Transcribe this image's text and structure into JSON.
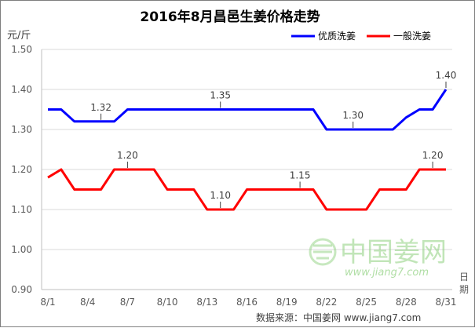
{
  "chart_data": {
    "type": "line",
    "title": "2016年8月昌邑生姜价格走势",
    "ylabel": "元/斤",
    "xlabel": "日期",
    "ylim": [
      0.9,
      1.5
    ],
    "y_ticks": [
      "0.90",
      "1.00",
      "1.10",
      "1.20",
      "1.30",
      "1.40",
      "1.50"
    ],
    "x_tick_labels": [
      "8/1",
      "8/4",
      "8/7",
      "8/10",
      "8/13",
      "8/16",
      "8/19",
      "8/22",
      "8/25",
      "8/28",
      "8/31"
    ],
    "x": [
      "8/1",
      "8/2",
      "8/3",
      "8/4",
      "8/5",
      "8/6",
      "8/7",
      "8/8",
      "8/9",
      "8/10",
      "8/11",
      "8/12",
      "8/13",
      "8/14",
      "8/15",
      "8/16",
      "8/17",
      "8/18",
      "8/19",
      "8/20",
      "8/21",
      "8/22",
      "8/23",
      "8/24",
      "8/25",
      "8/26",
      "8/27",
      "8/28",
      "8/29",
      "8/30",
      "8/31"
    ],
    "series": [
      {
        "name": "优质洗姜",
        "color": "#0000ff",
        "values": [
          1.35,
          1.35,
          1.32,
          1.32,
          1.32,
          1.32,
          1.35,
          1.35,
          1.35,
          1.35,
          1.35,
          1.35,
          1.35,
          1.35,
          1.35,
          1.35,
          1.35,
          1.35,
          1.35,
          1.35,
          1.35,
          1.3,
          1.3,
          1.3,
          1.3,
          1.3,
          1.3,
          1.33,
          1.35,
          1.35,
          1.4
        ]
      },
      {
        "name": "一般洗姜",
        "color": "#ff0000",
        "values": [
          1.18,
          1.2,
          1.15,
          1.15,
          1.15,
          1.2,
          1.2,
          1.2,
          1.2,
          1.15,
          1.15,
          1.15,
          1.1,
          1.1,
          1.1,
          1.15,
          1.15,
          1.15,
          1.15,
          1.15,
          1.15,
          1.1,
          1.1,
          1.1,
          1.1,
          1.15,
          1.15,
          1.15,
          1.2,
          1.2,
          1.2
        ]
      }
    ],
    "data_labels": [
      {
        "series": 0,
        "index": 4,
        "text": "1.32"
      },
      {
        "series": 0,
        "index": 13,
        "text": "1.35"
      },
      {
        "series": 0,
        "index": 23,
        "text": "1.30"
      },
      {
        "series": 0,
        "index": 30,
        "text": "1.40"
      },
      {
        "series": 1,
        "index": 6,
        "text": "1.20"
      },
      {
        "series": 1,
        "index": 13,
        "text": "1.10"
      },
      {
        "series": 1,
        "index": 19,
        "text": "1.15"
      },
      {
        "series": 1,
        "index": 29,
        "text": "1.20"
      }
    ],
    "legend_position": "top-right",
    "grid": true
  },
  "watermark": {
    "text": "中国姜网",
    "url": "www.jiang7.com"
  },
  "source": "数据来源：中国姜网 www.jiang7.com"
}
